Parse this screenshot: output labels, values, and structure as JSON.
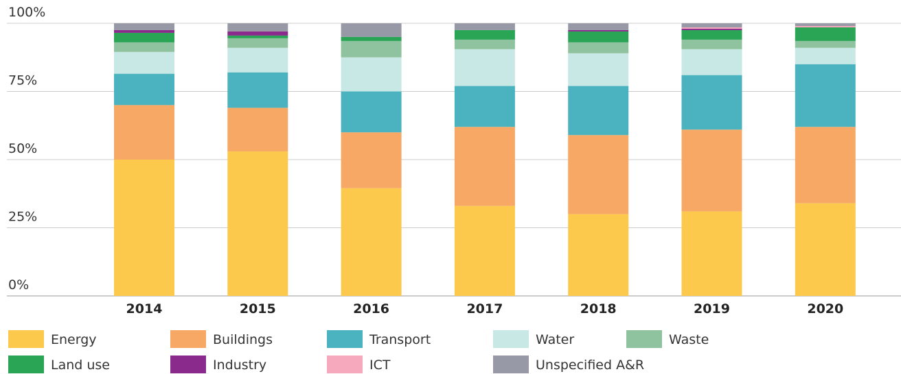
{
  "chart_data": {
    "type": "stacked_bar",
    "categories": [
      "2014",
      "2015",
      "2016",
      "2017",
      "2018",
      "2019",
      "2020"
    ],
    "series": [
      {
        "name": "Energy",
        "color": "#fdc94c",
        "values": [
          50,
          53,
          39.5,
          33,
          30,
          31,
          34
        ]
      },
      {
        "name": "Buildings",
        "color": "#f7a864",
        "values": [
          20,
          16,
          20.5,
          29,
          29,
          30,
          28
        ]
      },
      {
        "name": "Transport",
        "color": "#4bb3bf",
        "values": [
          11.5,
          13,
          15,
          15,
          18,
          20,
          23
        ]
      },
      {
        "name": "Water",
        "color": "#c8e8e5",
        "values": [
          8,
          9,
          12.5,
          13.5,
          12,
          9.5,
          6
        ]
      },
      {
        "name": "Waste",
        "color": "#8fc29e",
        "values": [
          3.5,
          3.5,
          6,
          3.5,
          4,
          3.5,
          2.5
        ]
      },
      {
        "name": "Land use",
        "color": "#2aa556",
        "values": [
          3.5,
          1,
          1.5,
          3.5,
          4,
          3.5,
          5
        ]
      },
      {
        "name": "Industry",
        "color": "#8a2a8c",
        "values": [
          1,
          1.5,
          0,
          0,
          0.5,
          0.5,
          0
        ]
      },
      {
        "name": "ICT",
        "color": "#f6a8bd",
        "values": [
          0,
          0,
          0,
          0,
          0,
          0.5,
          0.5
        ]
      },
      {
        "name": "Unspecified A&R",
        "color": "#9899a6",
        "values": [
          2.5,
          3,
          5,
          2.5,
          2.5,
          1.5,
          1
        ]
      }
    ],
    "ylim": [
      0,
      100
    ],
    "yticks": [
      {
        "value": 0,
        "label": "0%"
      },
      {
        "value": 25,
        "label": "25%"
      },
      {
        "value": 50,
        "label": "50%"
      },
      {
        "value": 75,
        "label": "75%"
      },
      {
        "value": 100,
        "label": "100%"
      }
    ],
    "grid": true
  }
}
